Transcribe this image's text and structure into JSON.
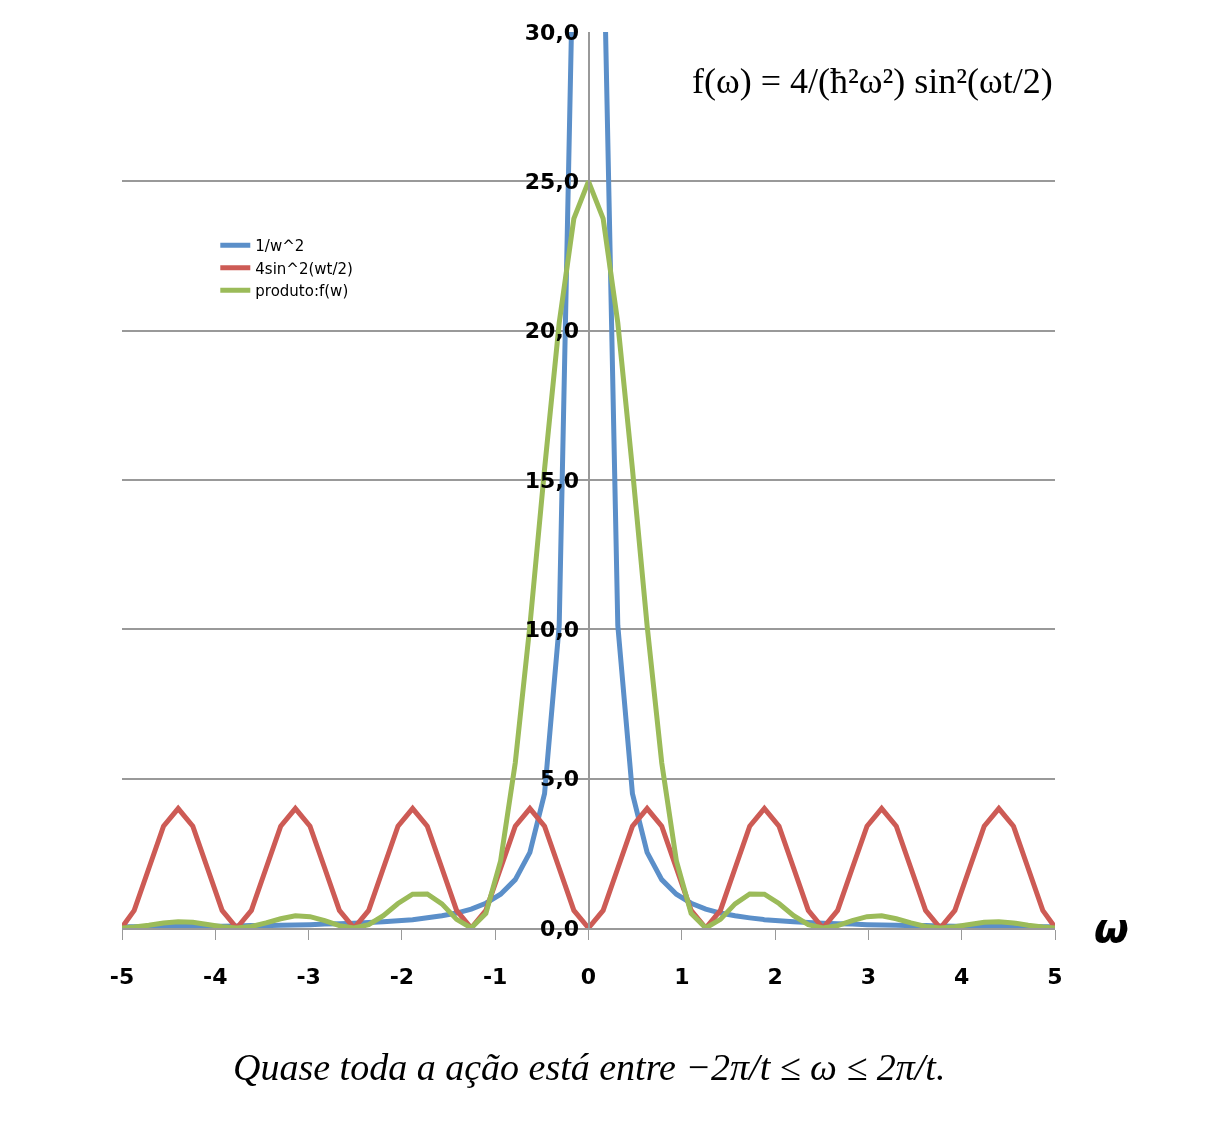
{
  "chart_data": {
    "type": "line",
    "xlabel": "ω",
    "annotations": [
      "f(ω) = 4/(ħ²ω²) sin²(ωt/2)",
      "Quase toda a ação está entre −2π/t ≤ ω ≤ 2π/t."
    ],
    "x": [
      -5,
      -4.869,
      -4.712,
      -4.555,
      -4.398,
      -4.241,
      -4.084,
      -3.927,
      -3.77,
      -3.613,
      -3.456,
      -3.299,
      -3.142,
      -2.985,
      -2.827,
      -2.67,
      -2.513,
      -2.356,
      -2.199,
      -2.042,
      -1.885,
      -1.728,
      -1.571,
      -1.414,
      -1.257,
      -1.1,
      -0.942,
      -0.785,
      -0.628,
      -0.471,
      -0.314,
      -0.157,
      0,
      0.157,
      0.314,
      0.471,
      0.628,
      0.785,
      0.942,
      1.1,
      1.257,
      1.414,
      1.571,
      1.728,
      1.885,
      2.042,
      2.199,
      2.356,
      2.513,
      2.67,
      2.827,
      2.985,
      3.142,
      3.299,
      3.456,
      3.613,
      3.77,
      3.927,
      4.084,
      4.241,
      4.398,
      4.555,
      4.712,
      4.869,
      5
    ],
    "series": [
      {
        "name": "1/w^2",
        "color": "#5b8fc9",
        "x": [
          -5,
          -4.869,
          -4.712,
          -4.555,
          -4.398,
          -4.241,
          -4.084,
          -3.927,
          -3.77,
          -3.613,
          -3.456,
          -3.299,
          -3.142,
          -2.985,
          -2.827,
          -2.67,
          -2.513,
          -2.356,
          -2.199,
          -2.042,
          -1.885,
          -1.728,
          -1.571,
          -1.414,
          -1.257,
          -1.1,
          -0.942,
          -0.785,
          -0.628,
          -0.471,
          -0.314,
          -0.183,
          0,
          0.183,
          0.314,
          0.471,
          0.628,
          0.785,
          0.942,
          1.1,
          1.257,
          1.414,
          1.571,
          1.728,
          1.885,
          2.042,
          2.199,
          2.356,
          2.513,
          2.67,
          2.827,
          2.985,
          3.142,
          3.299,
          3.456,
          3.613,
          3.77,
          3.927,
          4.084,
          4.241,
          4.398,
          4.555,
          4.712,
          4.869,
          5
        ],
        "values": [
          0.04,
          0.04,
          0.05,
          0.05,
          0.05,
          0.06,
          0.06,
          0.06,
          0.07,
          0.08,
          0.08,
          0.09,
          0.1,
          0.11,
          0.13,
          0.14,
          0.16,
          0.18,
          0.21,
          0.24,
          0.28,
          0.34,
          0.41,
          0.5,
          0.63,
          0.83,
          1.13,
          1.62,
          2.53,
          4.5,
          10.13,
          30,
          null,
          30,
          10.13,
          4.5,
          2.53,
          1.62,
          1.13,
          0.83,
          0.63,
          0.5,
          0.41,
          0.34,
          0.28,
          0.24,
          0.21,
          0.18,
          0.16,
          0.14,
          0.13,
          0.11,
          0.1,
          0.09,
          0.08,
          0.08,
          0.07,
          0.06,
          0.06,
          0.06,
          0.05,
          0.05,
          0.05,
          0.04,
          0.04
        ]
      },
      {
        "name": "4sin^2(wt/2)",
        "color": "#cd5b55",
        "values": [
          0.02,
          0.59,
          2,
          3.41,
          4,
          3.41,
          2,
          0.59,
          0,
          0.59,
          2,
          3.41,
          4,
          3.41,
          2,
          0.59,
          0,
          0.59,
          2,
          3.41,
          4,
          3.41,
          2,
          0.59,
          0,
          0.59,
          2,
          3.41,
          4,
          3.41,
          2,
          0.59,
          0,
          0.59,
          2,
          3.41,
          4,
          3.41,
          2,
          0.59,
          0,
          0.59,
          2,
          3.41,
          4,
          3.41,
          2,
          0.59,
          0,
          0.59,
          2,
          3.41,
          4,
          3.41,
          2,
          0.59,
          0,
          0.59,
          2,
          3.41,
          4,
          3.41,
          2,
          0.59,
          0.02
        ]
      },
      {
        "name": "produto:f(w)",
        "color": "#9bbb59",
        "values": [
          0,
          0.03,
          0.09,
          0.17,
          0.21,
          0.19,
          0.12,
          0.04,
          0,
          0.05,
          0.17,
          0.31,
          0.41,
          0.38,
          0.25,
          0.08,
          0,
          0.11,
          0.41,
          0.82,
          1.13,
          1.14,
          0.81,
          0.29,
          0,
          0.49,
          2.25,
          5.53,
          10.13,
          15.37,
          20.26,
          23.75,
          25,
          23.75,
          20.26,
          15.37,
          10.13,
          5.53,
          2.25,
          0.49,
          0,
          0.29,
          0.81,
          1.14,
          1.13,
          0.82,
          0.41,
          0.11,
          0,
          0.08,
          0.25,
          0.38,
          0.41,
          0.31,
          0.17,
          0.05,
          0,
          0.04,
          0.12,
          0.19,
          0.21,
          0.17,
          0.09,
          0.03,
          0
        ]
      }
    ],
    "xlim": [
      -5,
      5
    ],
    "xticks": [
      -5,
      -4,
      -3,
      -2,
      -1,
      0,
      1,
      2,
      3,
      4,
      5
    ],
    "ylim": [
      0,
      30
    ],
    "yticks": [
      {
        "value": 0,
        "label": "0,0"
      },
      {
        "value": 5,
        "label": "5,0"
      },
      {
        "value": 10,
        "label": "10,0"
      },
      {
        "value": 15,
        "label": "15,0"
      },
      {
        "value": 20,
        "label": "20,0"
      },
      {
        "value": 25,
        "label": "25,0"
      },
      {
        "value": 30,
        "label": "30,0"
      }
    ],
    "grid": "y",
    "legend": "top left",
    "marker": "none",
    "line_style": "solid"
  }
}
